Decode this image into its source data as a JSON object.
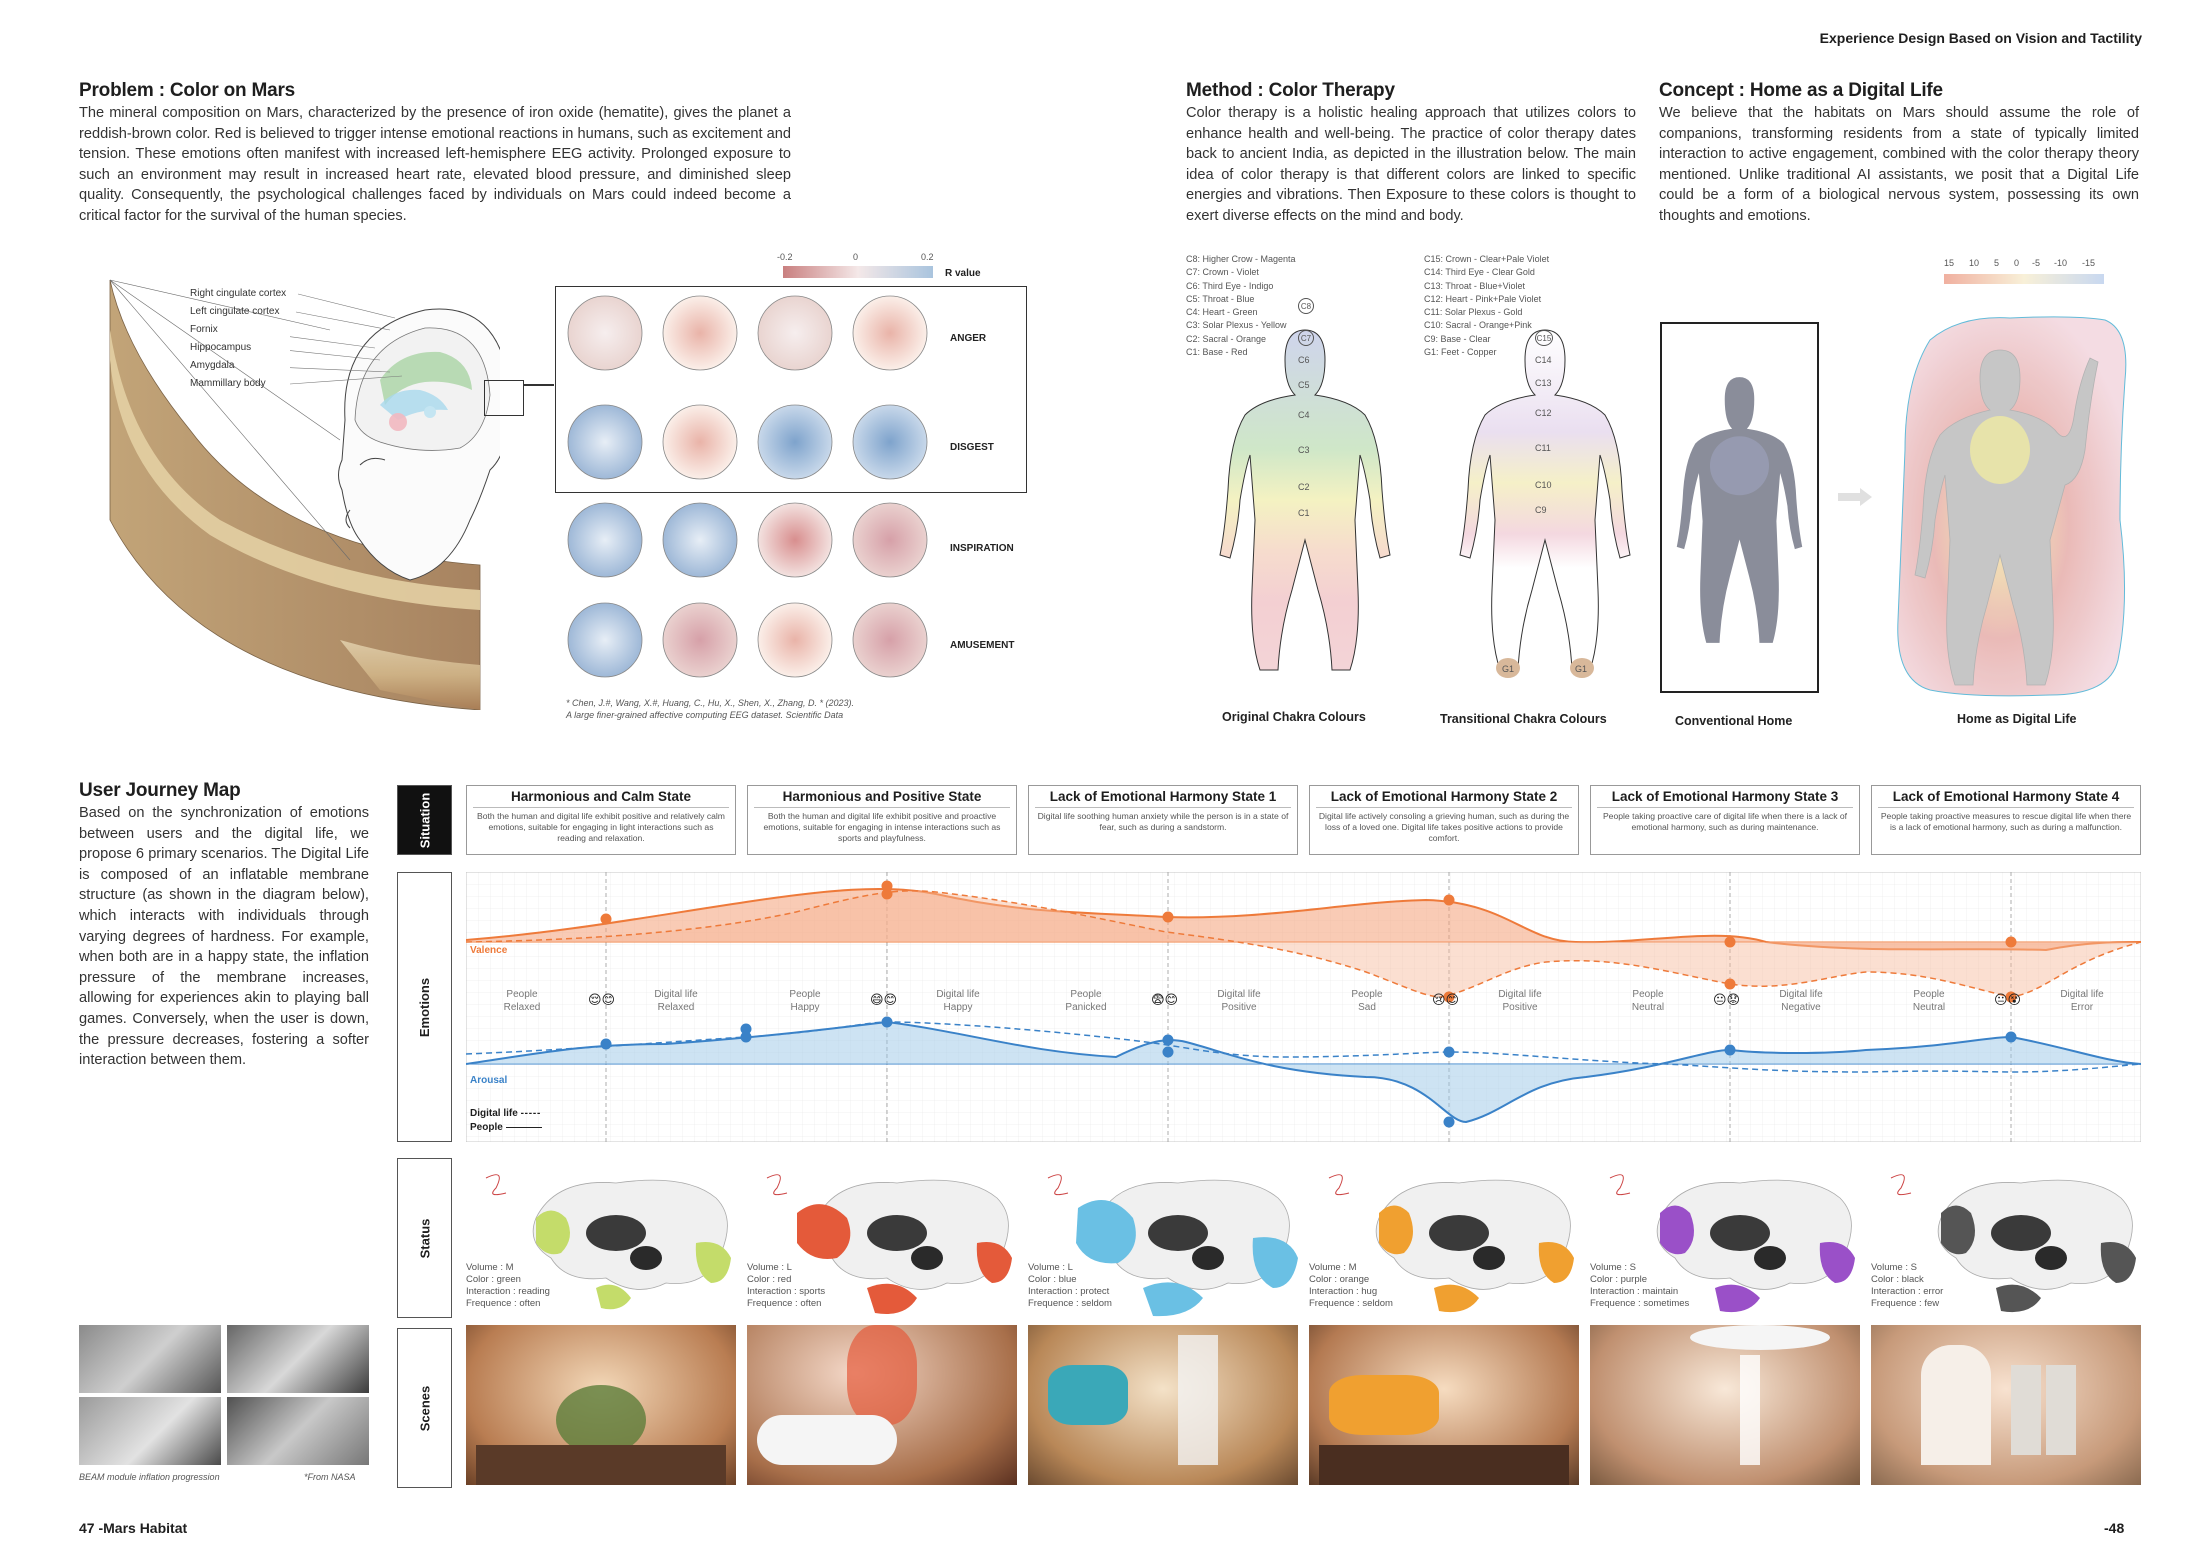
{
  "header": {
    "title": "Experience Design Based on Vision and Tactility"
  },
  "footer": {
    "left": "47 -Mars Habitat",
    "right": "-48"
  },
  "problem": {
    "title": "Problem : Color on Mars",
    "body": "The mineral composition on Mars, characterized by the presence of iron oxide (hematite), gives the planet a reddish-brown color. Red is believed to trigger intense emotional reactions in humans, such as excitement and tension. These emotions often manifest with increased left-hemisphere EEG activity. Prolonged exposure to such an environment may result in increased heart rate, elevated blood pressure, and diminished sleep quality. Consequently, the psychological challenges faced by individuals on Mars could indeed become a critical factor for the survival of the human species.",
    "brain_labels": [
      "Right cingulate cortex",
      "Left cingulate cortex",
      "Fornix",
      "Hippocampus",
      "Amygdala",
      "Mammillary body"
    ],
    "scale_ticks": [
      "-0.2",
      "0",
      "0.2"
    ],
    "scale_label": "R value",
    "eeg_rows": [
      "ANGER",
      "DISGEST",
      "INSPIRATION",
      "AMUSEMENT"
    ],
    "citation_line1": "* Chen, J.#, Wang, X.#, Huang, C., Hu, X., Shen, X., Zhang, D. * (2023).",
    "citation_line2": "A large finer-grained affective computing EEG dataset. Scientific Data"
  },
  "method": {
    "title": "Method : Color Therapy",
    "body": "Color therapy is a holistic healing approach that utilizes colors to enhance health and well-being. The practice of color therapy dates back to ancient India, as depicted in the illustration below. The main idea of color therapy is that different colors are linked to specific energies and vibrations. Then Exposure to these colors is thought to exert diverse effects on the mind and body.",
    "legend_left": [
      "C8: Higher Crow - Magenta",
      "C7: Crown - Violet",
      "C6: Third Eye - Indigo",
      "C5: Throat - Blue",
      "C4: Heart - Green",
      "C3: Solar Plexus - Yellow",
      "C2: Sacral - Orange",
      "C1: Base - Red"
    ],
    "legend_right": [
      "C15: Crown - Clear+Pale Violet",
      "C14: Third Eye - Clear Gold",
      "C13: Throat - Blue+Violet",
      "C12: Heart - Pink+Pale Violet",
      "C11: Solar Plexus - Gold",
      "C10: Sacral - Orange+Pink",
      "C9: Base - Clear",
      "G1: Feet - Copper"
    ],
    "figure1_chakras": [
      "C8",
      "C7",
      "C6",
      "C5",
      "C4",
      "C3",
      "C2",
      "C1"
    ],
    "figure2_chakras": [
      "C15",
      "C14",
      "C13",
      "C12",
      "C11",
      "C10",
      "C9"
    ],
    "feet_label": "G1",
    "caption_left": "Original Chakra Colours",
    "caption_right": "Transitional Chakra Colours"
  },
  "concept": {
    "title": "Concept : Home as a Digital Life",
    "body": "We believe that the habitats on Mars should assume the role of companions, transforming residents from a state of typically limited interaction to active engagement, combined with the color therapy theory mentioned. Unlike traditional AI assistants, we posit that a Digital Life could be a form of a biological nervous system, possessing its own thoughts and emotions.",
    "scale_ticks": [
      "15",
      "10",
      "5",
      "0",
      "-5",
      "-10",
      "-15"
    ],
    "caption_left": "Conventional Home",
    "caption_right": "Home as Digital Life"
  },
  "journey": {
    "title": "User Journey Map",
    "body": "Based on the synchronization of emotions between users and the digital life, we propose 6 primary scenarios. The Digital Life is composed of an inflatable membrane structure (as shown in the diagram below), which interacts with individuals through varying degrees of hardness. For example, when both are in a happy state, the inflation pressure of the membrane increases, allowing for experiences akin to playing ball games. Conversely, when the user is down, the pressure decreases, fostering a softer interaction between them.",
    "beam_caption": "BEAM module inflation progression",
    "beam_source": "*From NASA",
    "row_labels": [
      "Situation",
      "Emotions",
      "Status",
      "Scenes"
    ],
    "valence_label": "Valence",
    "arousal_label": "Arousal",
    "legend_digital": "Digital life",
    "legend_people": "People",
    "states": [
      {
        "title": "Harmonious and Calm State",
        "desc": "Both the human and digital life exhibit positive and relatively calm emotions, suitable for engaging in light interactions such as reading and relaxation.",
        "people": [
          "People",
          "Relaxed"
        ],
        "digital": [
          "Digital life",
          "Relaxed"
        ],
        "emoji": "😌😊",
        "status": [
          "Volume : M",
          "Color : green",
          "Interaction : reading",
          "Frequence : often"
        ],
        "color": "#b8d66a"
      },
      {
        "title": "Harmonious and Positive State",
        "desc": "Both the human and digital life exhibit positive and proactive emotions, suitable for engaging in intense interactions such as sports and playfulness.",
        "people": [
          "People",
          "Happy"
        ],
        "digital": [
          "Digital life",
          "Happy"
        ],
        "emoji": "😄😊",
        "status": [
          "Volume : L",
          "Color : red",
          "Interaction : sports",
          "Frequence : often"
        ],
        "color": "#e45a3a"
      },
      {
        "title": "Lack of Emotional Harmony State 1",
        "desc": "Digital life soothing human anxiety while the person is in a state of fear, such as during a sandstorm.",
        "people": [
          "People",
          "Panicked"
        ],
        "digital": [
          "Digital life",
          "Positive"
        ],
        "emoji": "😨😊",
        "status": [
          "Volume : L",
          "Color : blue",
          "Interaction : protect",
          "Frequence : seldom"
        ],
        "color": "#5ab8e0"
      },
      {
        "title": "Lack of Emotional Harmony State 2",
        "desc": "Digital life actively consoling a grieving human, such as during the loss of a loved one. Digital life takes positive actions to provide comfort.",
        "people": [
          "People",
          "Sad"
        ],
        "digital": [
          "Digital life",
          "Positive"
        ],
        "emoji": "😢😊",
        "status": [
          "Volume : M",
          "Color : orange",
          "Interaction : hug",
          "Frequence : seldom"
        ],
        "color": "#f0a030"
      },
      {
        "title": "Lack of Emotional Harmony State 3",
        "desc": "People taking proactive care of digital life when there is a lack of emotional harmony, such as during maintenance.",
        "people": [
          "People",
          "Neutral"
        ],
        "digital": [
          "Digital life",
          "Negative"
        ],
        "emoji": "😐😟",
        "status": [
          "Volume : S",
          "Color : purple",
          "Interaction : maintain",
          "Frequence : sometimes"
        ],
        "color": "#9a50c8"
      },
      {
        "title": "Lack of Emotional Harmony State 4",
        "desc": "People taking proactive measures to rescue digital life when there is a lack of emotional harmony, such as during a malfunction.",
        "people": [
          "People",
          "Neutral"
        ],
        "digital": [
          "Digital life",
          "Error"
        ],
        "emoji": "😐😵",
        "status": [
          "Volume : S",
          "Color : black",
          "Interaction : error",
          "Frequence : few"
        ],
        "color": "#444444"
      }
    ]
  }
}
